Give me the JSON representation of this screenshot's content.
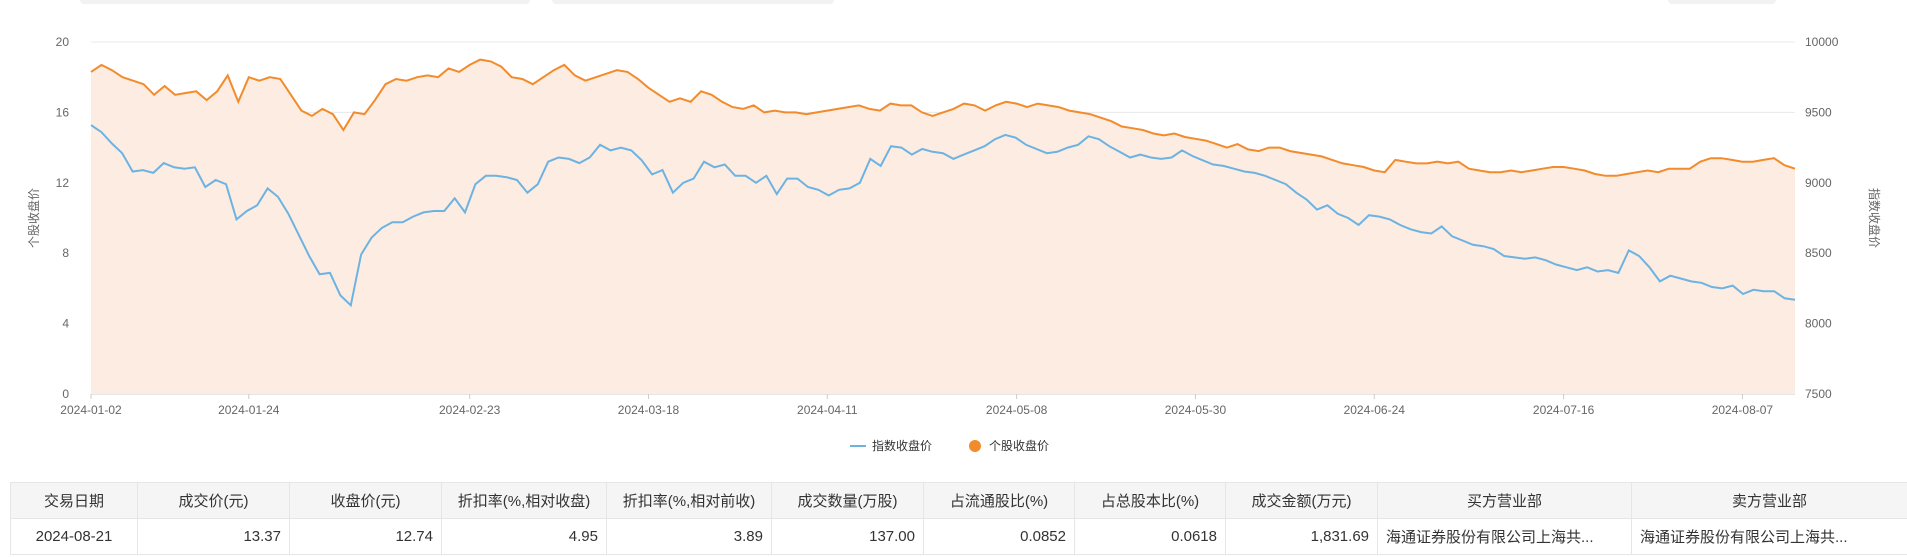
{
  "colors": {
    "index_line": "#6cb3e3",
    "stock_line": "#f28b2b",
    "area_fill": "#fdece1",
    "grid": "#e8e8e8"
  },
  "chart_data": {
    "type": "line",
    "x_ticks": [
      "2024-01-02",
      "2024-01-24",
      "2024-02-23",
      "2024-03-18",
      "2024-04-11",
      "2024-05-08",
      "2024-05-30",
      "2024-06-24",
      "2024-07-16",
      "2024-08-07"
    ],
    "x_tick_index": [
      0,
      15,
      36,
      53,
      70,
      88,
      105,
      122,
      140,
      157
    ],
    "y_left": {
      "label": "个股收盘价",
      "min": 0,
      "max": 20,
      "ticks": [
        0,
        4,
        8,
        12,
        16,
        20
      ]
    },
    "y_right": {
      "label": "指数收盘价",
      "min": 7500,
      "max": 10000,
      "ticks": [
        7500,
        8000,
        8500,
        9000,
        9500,
        10000
      ]
    },
    "legend": {
      "position": "bottom"
    },
    "series": [
      {
        "name": "指数收盘价",
        "axis": "right",
        "color": "#6cb3e3",
        "values": [
          9410,
          9360,
          9280,
          9210,
          9080,
          9090,
          9070,
          9140,
          9110,
          9100,
          9110,
          8970,
          9020,
          8990,
          8740,
          8800,
          8840,
          8960,
          8900,
          8780,
          8630,
          8480,
          8350,
          8360,
          8200,
          8130,
          8490,
          8610,
          8680,
          8720,
          8720,
          8760,
          8790,
          8800,
          8800,
          8890,
          8790,
          8990,
          9050,
          9050,
          9040,
          9020,
          8930,
          8990,
          9150,
          9180,
          9170,
          9140,
          9180,
          9270,
          9230,
          9250,
          9230,
          9160,
          9060,
          9090,
          8930,
          9000,
          9030,
          9150,
          9110,
          9130,
          9050,
          9050,
          9000,
          9050,
          8920,
          9030,
          9030,
          8970,
          8950,
          8910,
          8950,
          8960,
          9000,
          9170,
          9120,
          9260,
          9250,
          9200,
          9240,
          9220,
          9210,
          9170,
          9200,
          9230,
          9260,
          9310,
          9340,
          9320,
          9270,
          9240,
          9210,
          9220,
          9250,
          9270,
          9330,
          9310,
          9260,
          9220,
          9180,
          9200,
          9180,
          9170,
          9180,
          9230,
          9190,
          9160,
          9130,
          9120,
          9100,
          9080,
          9070,
          9050,
          9020,
          8990,
          8930,
          8880,
          8810,
          8840,
          8780,
          8750,
          8700,
          8770,
          8760,
          8740,
          8700,
          8670,
          8650,
          8640,
          8690,
          8620,
          8590,
          8560,
          8550,
          8530,
          8480,
          8470,
          8460,
          8470,
          8450,
          8420,
          8400,
          8380,
          8400,
          8370,
          8380,
          8360,
          8520,
          8480,
          8400,
          8300,
          8340,
          8320,
          8300,
          8290,
          8260,
          8250,
          8270,
          8210,
          8240,
          8230,
          8230,
          8180,
          8170
        ]
      },
      {
        "name": "个股收盘价",
        "axis": "left",
        "color": "#f28b2b",
        "values": [
          18.3,
          18.7,
          18.4,
          18.0,
          17.8,
          17.6,
          17.0,
          17.5,
          17.0,
          17.1,
          17.2,
          16.7,
          17.2,
          18.1,
          16.6,
          18.0,
          17.8,
          18.0,
          17.9,
          17.0,
          16.1,
          15.8,
          16.2,
          15.9,
          15.0,
          16.0,
          15.9,
          16.7,
          17.6,
          17.9,
          17.8,
          18.0,
          18.1,
          18.0,
          18.5,
          18.3,
          18.7,
          19.0,
          18.9,
          18.6,
          18.0,
          17.9,
          17.6,
          18.0,
          18.4,
          18.7,
          18.1,
          17.8,
          18.0,
          18.2,
          18.4,
          18.3,
          17.9,
          17.4,
          17.0,
          16.6,
          16.8,
          16.6,
          17.2,
          17.0,
          16.6,
          16.3,
          16.2,
          16.4,
          16.0,
          16.1,
          16.0,
          16.0,
          15.9,
          16.0,
          16.1,
          16.2,
          16.3,
          16.4,
          16.2,
          16.1,
          16.5,
          16.4,
          16.4,
          16.0,
          15.8,
          16.0,
          16.2,
          16.5,
          16.4,
          16.1,
          16.4,
          16.6,
          16.5,
          16.3,
          16.5,
          16.4,
          16.3,
          16.1,
          16.0,
          15.9,
          15.7,
          15.5,
          15.2,
          15.1,
          15.0,
          14.8,
          14.7,
          14.8,
          14.6,
          14.5,
          14.4,
          14.2,
          14.0,
          14.2,
          13.9,
          13.8,
          14.0,
          14.0,
          13.8,
          13.7,
          13.6,
          13.5,
          13.3,
          13.1,
          13.0,
          12.9,
          12.7,
          12.6,
          13.3,
          13.2,
          13.1,
          13.1,
          13.2,
          13.1,
          13.2,
          12.8,
          12.7,
          12.6,
          12.6,
          12.7,
          12.6,
          12.7,
          12.8,
          12.9,
          12.9,
          12.8,
          12.7,
          12.5,
          12.4,
          12.4,
          12.5,
          12.6,
          12.7,
          12.6,
          12.8,
          12.8,
          12.8,
          13.2,
          13.4,
          13.4,
          13.3,
          13.2,
          13.2,
          13.3,
          13.4,
          13.0,
          12.8
        ]
      }
    ]
  },
  "table": {
    "headers": [
      "交易日期",
      "成交价(元)",
      "收盘价(元)",
      "折扣率(%,相对收盘)",
      "折扣率(%,相对前收)",
      "成交数量(万股)",
      "占流通股比(%)",
      "占总股本比(%)",
      "成交金额(万元)",
      "买方营业部",
      "卖方营业部"
    ],
    "row": {
      "date": "2024-08-21",
      "deal_price": "13.37",
      "close_price": "12.74",
      "discount_close": "4.95",
      "discount_prev": "3.89",
      "volume": "137.00",
      "float_ratio": "0.0852",
      "total_ratio": "0.0618",
      "amount": "1,831.69",
      "buyer": "海通证券股份有限公司上海共...",
      "seller": "海通证券股份有限公司上海共..."
    }
  }
}
